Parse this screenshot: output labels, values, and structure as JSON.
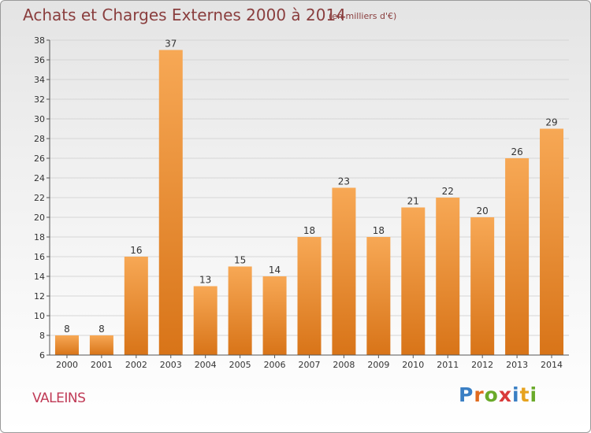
{
  "header": {
    "title": "Achats et Charges Externes 2000 à 2014",
    "subtitle": "(en milliers d'€)"
  },
  "footer": {
    "commune": "VALEINS",
    "brand_letters": [
      "P",
      "r",
      "o",
      "x",
      "i",
      "t",
      "i"
    ],
    "brand_colors": [
      "#3a7fc4",
      "#e06a1e",
      "#6aaa2a",
      "#d93a3a",
      "#3a7fc4",
      "#e6a21e",
      "#6aaa2a"
    ]
  },
  "colors": {
    "bar_light": "#f7a855",
    "bar_dark": "#d87418",
    "text": "#333333",
    "grid": "#d6d6d6"
  },
  "chart_data": {
    "type": "bar",
    "title": "Achats et Charges Externes 2000 à 2014",
    "categories": [
      "2000",
      "2001",
      "2002",
      "2003",
      "2004",
      "2005",
      "2006",
      "2007",
      "2008",
      "2009",
      "2010",
      "2011",
      "2012",
      "2013",
      "2014"
    ],
    "values": [
      8,
      8,
      16,
      37,
      13,
      15,
      14,
      18,
      23,
      18,
      21,
      22,
      20,
      26,
      29
    ],
    "xlabel": "",
    "ylabel": "",
    "ylim": [
      6,
      38
    ],
    "yticks": [
      6,
      8,
      10,
      12,
      14,
      16,
      18,
      20,
      22,
      24,
      26,
      28,
      30,
      32,
      34,
      36,
      38
    ],
    "grid": true
  }
}
